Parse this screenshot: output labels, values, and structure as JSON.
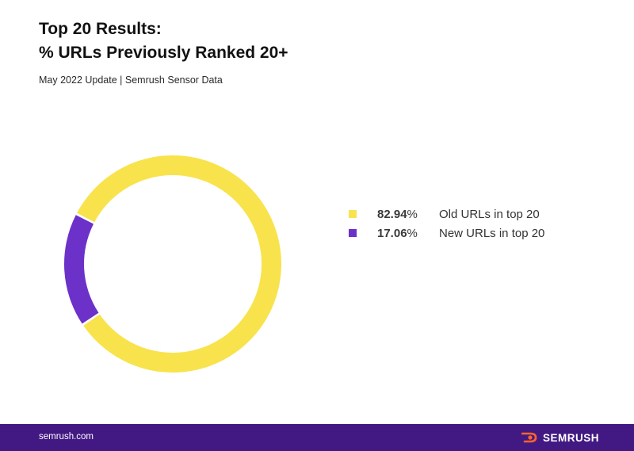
{
  "header": {
    "title_line1": "Top 20 Results:",
    "title_line2": "% URLs Previously Ranked 20+",
    "subtitle": "May 2022 Update | Semrush Sensor Data"
  },
  "chart_data": {
    "type": "pie",
    "variant": "donut",
    "series": [
      {
        "name": "Old URLs in top 20",
        "value": 82.94,
        "display": "82.94",
        "unit": "%",
        "color": "#f8e34d"
      },
      {
        "name": "New URLs in top 20",
        "value": 17.06,
        "display": "17.06",
        "unit": "%",
        "color": "#6c31c9"
      }
    ],
    "legend_position": "right"
  },
  "footer": {
    "url": "semrush.com",
    "brand": "SEMRUSH",
    "brand_icon": "semrush-flame-icon",
    "background": "#421983",
    "icon_color": "#ff642d"
  }
}
